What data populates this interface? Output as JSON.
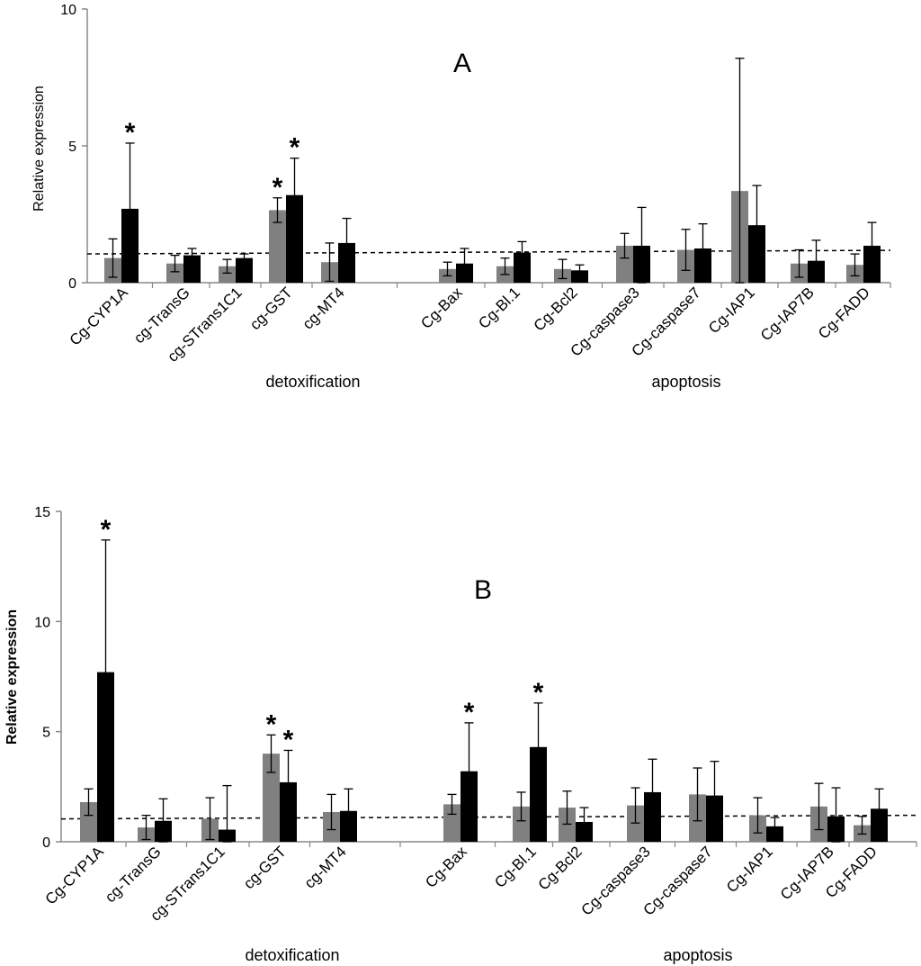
{
  "chart_data": [
    {
      "type": "bar",
      "panel": "A",
      "ylabel": "Relative expression",
      "ylim": [
        0,
        10
      ],
      "yticks": [
        "0",
        "5",
        "10"
      ],
      "reference_line": 1.1,
      "groups": [
        {
          "label": "detoxification",
          "categories": [
            "Cg-CYP1A",
            "cg-TransG",
            "cg-STrans1C1",
            "cg-GST",
            "cg-MT4"
          ]
        },
        {
          "label": "apoptosis",
          "categories": [
            "Cg-Bax",
            "Cg-Bl.1",
            "Cg-Bcl2",
            "Cg-caspase3",
            "Cg-caspase7",
            "Cg-IAP1",
            "Cg-IAP7B",
            "Cg-FADD"
          ]
        }
      ],
      "series": [
        {
          "name": "gray",
          "color": "#808080",
          "values": [
            0.9,
            0.7,
            0.6,
            2.65,
            0.75,
            0.5,
            0.6,
            0.5,
            1.35,
            1.2,
            3.35,
            0.7,
            0.65
          ],
          "errors": [
            0.7,
            0.3,
            0.25,
            0.45,
            0.7,
            0.25,
            0.3,
            0.35,
            0.45,
            0.75,
            4.85,
            0.5,
            0.4
          ],
          "stars": [
            false,
            false,
            false,
            true,
            false,
            false,
            false,
            false,
            false,
            false,
            false,
            false,
            false
          ]
        },
        {
          "name": "black",
          "color": "#000000",
          "values": [
            2.7,
            1.0,
            0.9,
            3.2,
            1.45,
            0.7,
            1.1,
            0.45,
            1.35,
            1.25,
            2.1,
            0.8,
            1.35
          ],
          "errors": [
            2.4,
            0.25,
            0.15,
            1.35,
            0.9,
            0.55,
            0.4,
            0.2,
            1.4,
            0.9,
            1.45,
            0.75,
            0.85
          ],
          "stars": [
            true,
            false,
            false,
            true,
            false,
            false,
            false,
            false,
            false,
            false,
            false,
            false,
            false
          ]
        }
      ]
    },
    {
      "type": "bar",
      "panel": "B",
      "ylabel": "Relative expression",
      "ylim": [
        0,
        15
      ],
      "yticks": [
        "0",
        "5",
        "10",
        "15"
      ],
      "reference_line": 1.1,
      "groups": [
        {
          "label": "detoxification",
          "categories": [
            "Cg-CYP1A",
            "cg-TransG",
            "cg-STrans1C1",
            "cg-GST",
            "cg-MT4"
          ]
        },
        {
          "label": "apoptosis",
          "categories": [
            "Cg-Bax",
            "Cg-Bl.1",
            "Cg-Bcl2",
            "Cg-caspase3",
            "Cg-caspase7",
            "Cg-IAP1",
            "Cg-IAP7B",
            "Cg-FADD"
          ]
        }
      ],
      "series": [
        {
          "name": "gray",
          "color": "#808080",
          "values": [
            1.8,
            0.65,
            1.05,
            4.0,
            1.35,
            1.7,
            1.6,
            1.55,
            1.65,
            2.15,
            1.2,
            1.6,
            0.75
          ],
          "errors": [
            0.6,
            0.55,
            0.95,
            0.85,
            0.8,
            0.45,
            0.65,
            0.75,
            0.8,
            1.2,
            0.8,
            1.05,
            0.4
          ],
          "stars": [
            false,
            false,
            false,
            true,
            false,
            false,
            false,
            false,
            false,
            false,
            false,
            false,
            false
          ]
        },
        {
          "name": "black",
          "color": "#000000",
          "values": [
            7.7,
            0.95,
            0.55,
            2.7,
            1.4,
            3.2,
            4.3,
            0.9,
            2.25,
            2.1,
            0.7,
            1.15,
            1.5
          ],
          "errors": [
            6.0,
            1.0,
            2.0,
            1.45,
            1.0,
            2.2,
            2.0,
            0.65,
            1.5,
            1.55,
            0.4,
            1.3,
            0.9
          ],
          "stars": [
            true,
            false,
            false,
            true,
            false,
            true,
            true,
            false,
            false,
            false,
            false,
            false,
            false
          ]
        }
      ]
    }
  ]
}
